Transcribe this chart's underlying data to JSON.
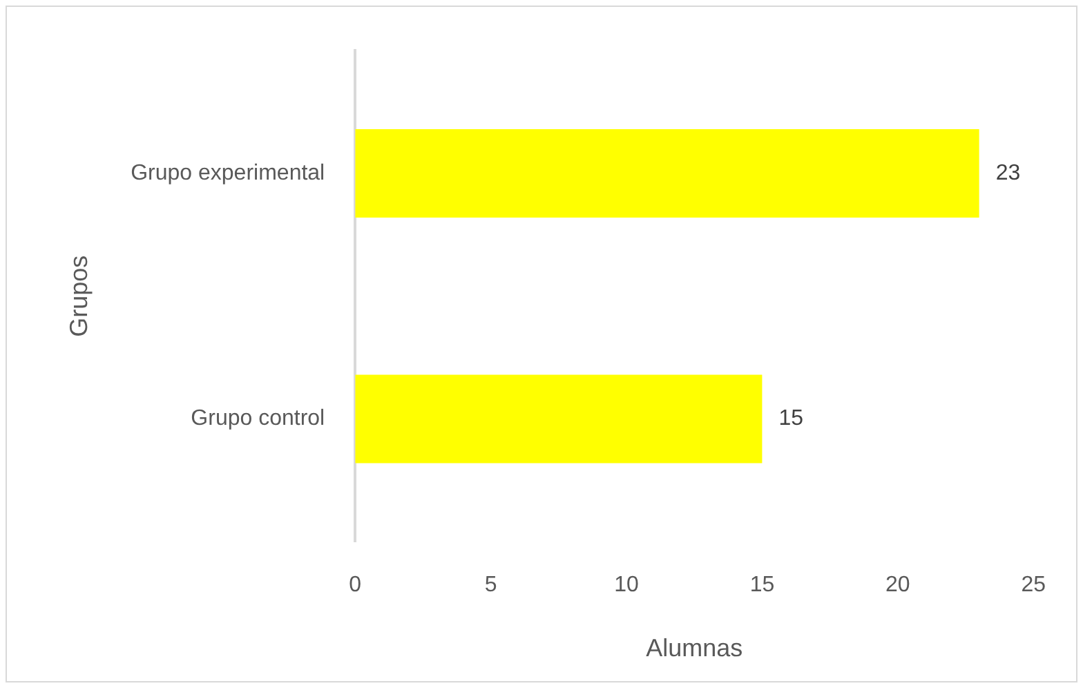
{
  "chart_data": {
    "type": "bar",
    "orientation": "horizontal",
    "categories": [
      "Grupo experimental",
      "Grupo control"
    ],
    "values": [
      23,
      15
    ],
    "color": "#ffff00",
    "xlim": [
      0,
      25
    ],
    "xticks": [
      0,
      5,
      10,
      15,
      20,
      25
    ],
    "xlabel": "Alumnas",
    "ylabel": "Grupos",
    "grid": false,
    "legend": false,
    "data_labels": true
  }
}
